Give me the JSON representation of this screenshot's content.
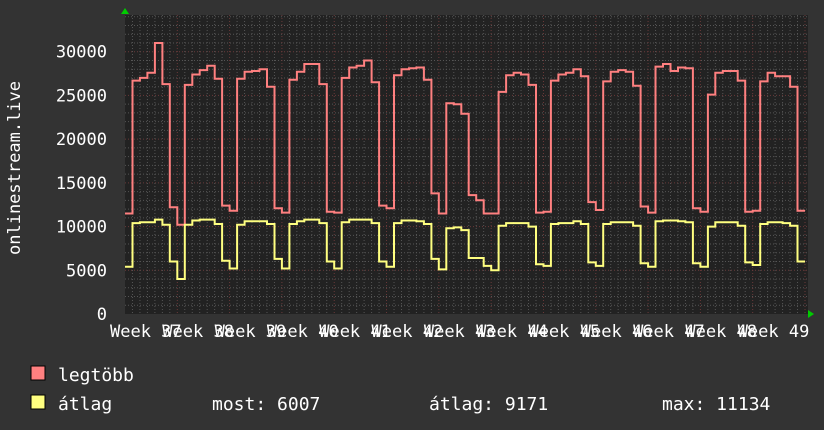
{
  "chart_data": {
    "type": "line",
    "ylabel": "onlinestream.live",
    "ylim": [
      0,
      34200
    ],
    "yticks": [
      0,
      5000,
      10000,
      15000,
      20000,
      25000,
      30000
    ],
    "ytick_labels": [
      "0",
      "5000",
      "10000",
      "15000",
      "20000",
      "25000",
      "30000"
    ],
    "xtick_labels": [
      "Week 37",
      "Week 38",
      "Week 39",
      "Week 40",
      "Week 41",
      "Week 42",
      "Week 43",
      "Week 44",
      "Week 45",
      "Week 46",
      "Week 47",
      "Week 48",
      "Week 49"
    ],
    "grid": true,
    "series": [
      {
        "name": "legtöbb",
        "color": "#ff8080",
        "values": [
          11500,
          26700,
          27000,
          27600,
          31000,
          26300,
          12200,
          10200,
          26200,
          27400,
          27900,
          28400,
          26900,
          12400,
          11800,
          26900,
          27700,
          27800,
          28000,
          26000,
          12100,
          11600,
          26800,
          27700,
          28600,
          28600,
          26300,
          11700,
          11600,
          27000,
          28200,
          28400,
          29000,
          26500,
          12400,
          12100,
          27300,
          28000,
          28100,
          28200,
          26800,
          13800,
          11500,
          24100,
          24000,
          22900,
          13600,
          13000,
          11500,
          11500,
          25400,
          27300,
          27600,
          27400,
          26200,
          11600,
          11700,
          26700,
          27400,
          27600,
          28000,
          27200,
          12800,
          11900,
          26600,
          27700,
          27900,
          27700,
          26100,
          12300,
          11600,
          28300,
          28600,
          27800,
          28200,
          28100,
          12100,
          11700,
          25100,
          27600,
          27800,
          27800,
          26700,
          11700,
          11800,
          26600,
          27600,
          27200,
          27200,
          26000,
          11800
        ]
      },
      {
        "name": "átlag",
        "color": "#ffff80",
        "values": [
          5400,
          10400,
          10500,
          10500,
          10800,
          10200,
          6000,
          4000,
          10200,
          10700,
          10800,
          10800,
          10300,
          6100,
          5200,
          10200,
          10600,
          10600,
          10600,
          10300,
          6300,
          5200,
          10300,
          10600,
          10800,
          10800,
          10400,
          6000,
          5200,
          10500,
          10800,
          10800,
          10800,
          10400,
          6000,
          5400,
          10400,
          10700,
          10700,
          10600,
          10300,
          6300,
          5100,
          9800,
          9900,
          9600,
          6400,
          6400,
          5500,
          5000,
          10100,
          10400,
          10400,
          10400,
          10000,
          5700,
          5500,
          10300,
          10400,
          10400,
          10600,
          10300,
          5900,
          5500,
          10300,
          10500,
          10500,
          10500,
          10100,
          5800,
          5400,
          10600,
          10700,
          10700,
          10600,
          10500,
          5800,
          5400,
          10000,
          10500,
          10500,
          10500,
          10100,
          5900,
          5600,
          10300,
          10500,
          10500,
          10400,
          10100,
          6000
        ]
      }
    ]
  },
  "legend": {
    "items": [
      {
        "label": "legtöbb",
        "color": "#ff8080"
      },
      {
        "label": "átlag",
        "color": "#ffff80"
      }
    ],
    "stats": {
      "current": "most: 6007",
      "average": "átlag: 9171",
      "max": "max: 11134"
    }
  },
  "colors": {
    "background": "#333333",
    "plot_background": "#222222",
    "grid_minor": "#555555",
    "grid_major": "#6a3a3a",
    "axis_arrow": "#00cc00"
  }
}
